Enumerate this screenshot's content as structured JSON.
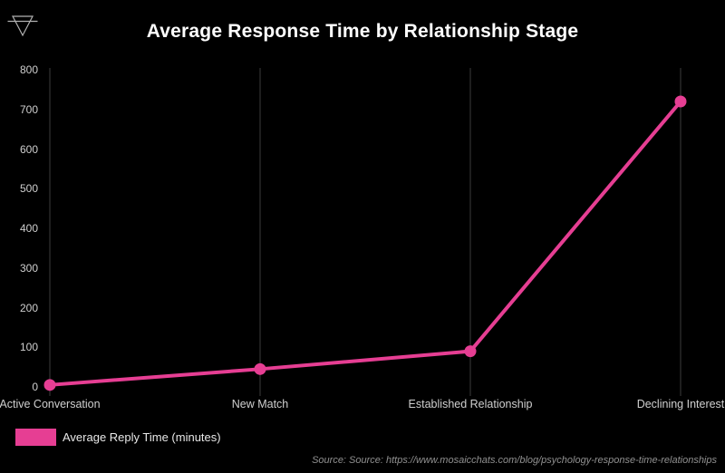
{
  "header": {
    "title": "Average Response Time by Relationship Stage",
    "logo_icon": "earth-symbol-icon"
  },
  "chart_data": {
    "type": "line",
    "title": "Average Response Time by Relationship Stage",
    "categories": [
      "Active Conversation",
      "New Match",
      "Established Relationship",
      "Declining Interest"
    ],
    "series": [
      {
        "name": "Average Reply Time (minutes)",
        "values": [
          5,
          45,
          90,
          720
        ],
        "color": "#e63e93"
      }
    ],
    "xlabel": "",
    "ylabel": "",
    "ylim": [
      0,
      800
    ],
    "yticks": [
      0,
      100,
      200,
      300,
      400,
      500,
      600,
      700,
      800
    ],
    "grid": "vertical-category-lines-only",
    "gridline_color": "#3c3c3c",
    "tick_label_color": "#cfcfcf",
    "background_color": "#000000",
    "marker": "circle",
    "legend_position": "bottom-left"
  },
  "legend": {
    "swatch_color": "#e63e93",
    "label": "Average Reply Time (minutes)"
  },
  "footer": {
    "source_text": "Source: Source: https://www.mosaicchats.com/blog/psychology-response-time-relationships"
  }
}
